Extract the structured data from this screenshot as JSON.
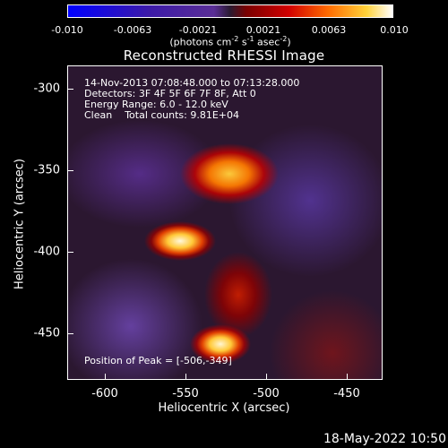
{
  "colorbar": {
    "ticks": [
      "-0.010",
      "-0.0063",
      "-0.0021",
      "0.0021",
      "0.0063",
      "0.010"
    ],
    "unit_text": "(photons cm",
    "unit_sup1": "-2",
    "unit_mid": " s",
    "unit_sup2": "-1",
    "unit_mid2": " asec",
    "unit_sup3": "-2",
    "unit_end": ")"
  },
  "title": "Reconstructed RHESSI Image",
  "info": {
    "line1": "14-Nov-2013 07:08:48.000 to 07:13:28.000",
    "line2": "Detectors: 3F 4F 5F 6F 7F 8F, Att 0",
    "line3": "Energy Range: 6.0 - 12.0 keV",
    "line4": "Clean    Total counts: 9.81E+04",
    "peak": "Position of Peak = [-506,-349]"
  },
  "axes": {
    "xlabel": "Heliocentric X (arcsec)",
    "ylabel": "Heliocentric Y (arcsec)",
    "xticks": [
      "-600",
      "-550",
      "-500",
      "-450"
    ],
    "yticks": [
      "-300",
      "-350",
      "-400",
      "-450"
    ]
  },
  "footer": "18-May-2022 10:50"
}
